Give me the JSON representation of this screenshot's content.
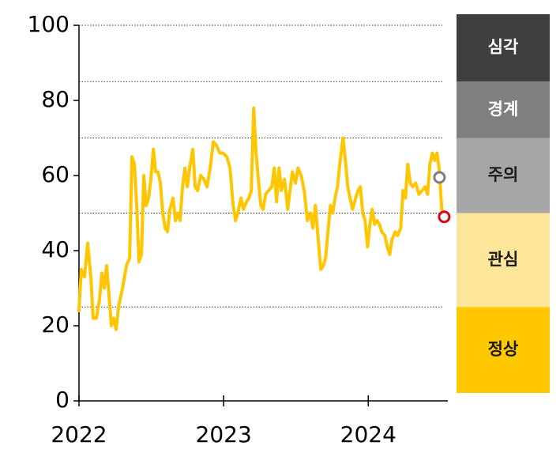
{
  "chart_data": {
    "type": "line",
    "x": [
      2022.0,
      2022.016,
      2022.038,
      2022.06,
      2022.082,
      2022.098,
      2022.12,
      2022.142,
      2022.158,
      2022.175,
      2022.191,
      2022.208,
      2022.224,
      2022.24,
      2022.257,
      2022.273,
      2022.301,
      2022.328,
      2022.35,
      2022.366,
      2022.383,
      2022.399,
      2022.415,
      2022.432,
      2022.448,
      2022.464,
      2022.481,
      2022.497,
      2022.514,
      2022.53,
      2022.546,
      2022.563,
      2022.579,
      2022.596,
      2022.612,
      2022.628,
      2022.65,
      2022.667,
      2022.683,
      2022.699,
      2022.716,
      2022.732,
      2022.749,
      2022.765,
      2022.787,
      2022.803,
      2022.82,
      2022.842,
      2022.863,
      2022.885,
      2022.907,
      2022.929,
      2022.951,
      2022.973,
      2022.995,
      2023.022,
      2023.044,
      2023.066,
      2023.082,
      2023.098,
      2023.12,
      2023.137,
      2023.158,
      2023.175,
      2023.191,
      2023.208,
      2023.224,
      2023.24,
      2023.257,
      2023.273,
      2023.29,
      2023.311,
      2023.333,
      2023.35,
      2023.366,
      2023.383,
      2023.399,
      2023.421,
      2023.443,
      2023.459,
      2023.475,
      2023.497,
      2023.514,
      2023.536,
      2023.557,
      2023.579,
      2023.601,
      2023.617,
      2023.634,
      2023.656,
      2023.672,
      2023.689,
      2023.705,
      2023.721,
      2023.738,
      2023.754,
      2023.77,
      2023.787,
      2023.803,
      2023.825,
      2023.842,
      2023.858,
      2023.874,
      2023.891,
      2023.913,
      2023.929,
      2023.945,
      2023.962,
      2023.978,
      2023.995,
      2024.011,
      2024.027,
      2024.044,
      2024.06,
      2024.077,
      2024.093,
      2024.115,
      2024.131,
      2024.148,
      2024.164,
      2024.186,
      2024.202,
      2024.224,
      2024.24,
      2024.257,
      2024.273,
      2024.29,
      2024.306,
      2024.328,
      2024.35,
      2024.372,
      2024.393,
      2024.41,
      2024.426,
      2024.443,
      2024.459,
      2024.475,
      2024.492,
      2024.508,
      2024.525
    ],
    "series": [
      {
        "color": "#ffc600",
        "values": [
          24,
          35,
          33,
          42,
          33,
          22,
          22,
          27,
          34,
          30,
          36,
          28,
          20,
          22,
          19,
          25,
          30,
          36,
          38,
          65,
          63,
          52,
          37,
          39,
          60,
          52,
          54,
          59,
          67,
          61,
          61,
          58,
          50,
          46,
          45,
          51,
          54,
          48,
          50,
          48,
          57,
          62,
          57,
          62,
          67,
          57,
          56,
          60,
          59,
          57,
          62,
          69,
          68,
          66,
          66,
          65,
          62,
          52,
          48,
          50,
          54,
          51,
          53,
          54,
          56,
          78,
          66,
          59,
          52,
          51,
          55,
          56,
          57,
          62,
          53,
          62,
          56,
          59,
          51,
          56,
          61,
          58,
          62,
          60,
          56,
          48,
          50,
          46,
          52,
          42,
          35,
          36,
          38,
          45,
          52,
          50,
          54,
          57,
          63,
          70,
          64,
          57,
          54,
          51,
          54,
          56,
          57,
          50,
          48,
          41,
          47,
          51,
          47,
          48,
          47,
          45,
          44,
          41,
          39,
          43,
          45,
          44,
          46,
          56,
          54,
          63,
          58,
          57,
          58,
          55,
          56,
          57,
          55,
          63,
          66,
          64,
          66,
          61,
          51,
          49
        ]
      }
    ],
    "markers": [
      {
        "x": 2024.492,
        "value": 59.5,
        "color": "#7f7f7f"
      },
      {
        "x": 2024.525,
        "value": 49,
        "color": "#e0001b"
      }
    ],
    "zones": [
      {
        "name": "심각",
        "from": 85,
        "to": 100,
        "color": "#3f3f3f",
        "text_color": "#ffffff"
      },
      {
        "name": "경계",
        "from": 70,
        "to": 85,
        "color": "#7f7f7f",
        "text_color": "#ffffff"
      },
      {
        "name": "주의",
        "from": 50,
        "to": 70,
        "color": "#a6a6a6",
        "text_color": "#1a1a1a"
      },
      {
        "name": "관심",
        "from": 25,
        "to": 50,
        "color": "#fde59a",
        "text_color": "#1a1a1a"
      },
      {
        "name": "정상",
        "from": 0,
        "to": 25,
        "color": "#ffc800",
        "text_color": "#1a1a1a"
      }
    ],
    "xlim": [
      2022,
      2024.55
    ],
    "xticks": [
      2022,
      2023,
      2024
    ],
    "ylim": [
      0,
      100
    ],
    "yticks": [
      0,
      20,
      40,
      60,
      80,
      100
    ]
  }
}
